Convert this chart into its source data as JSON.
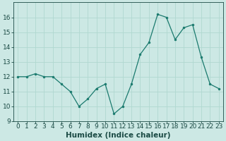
{
  "x": [
    0,
    1,
    2,
    3,
    4,
    5,
    6,
    7,
    8,
    9,
    10,
    11,
    12,
    13,
    14,
    15,
    16,
    17,
    18,
    19,
    20,
    21,
    22,
    23
  ],
  "y": [
    12.0,
    12.0,
    12.2,
    12.0,
    12.0,
    11.5,
    11.0,
    10.0,
    10.5,
    11.2,
    11.5,
    9.5,
    10.0,
    11.5,
    13.5,
    14.3,
    16.2,
    16.0,
    14.5,
    15.3,
    15.5,
    13.3,
    11.5,
    11.2
  ],
  "xlabel": "Humidex (Indice chaleur)",
  "xlim": [
    -0.5,
    23.5
  ],
  "ylim": [
    9,
    17
  ],
  "yticks": [
    9,
    10,
    11,
    12,
    13,
    14,
    15,
    16
  ],
  "xticks": [
    0,
    1,
    2,
    3,
    4,
    5,
    6,
    7,
    8,
    9,
    10,
    11,
    12,
    13,
    14,
    15,
    16,
    17,
    18,
    19,
    20,
    21,
    22,
    23
  ],
  "line_color": "#1a7a6e",
  "marker_color": "#1a7a6e",
  "bg_color": "#cce8e4",
  "grid_color": "#b0d8d0",
  "label_color": "#1a4a44",
  "tick_fontsize": 6.5,
  "xlabel_fontsize": 7.5
}
